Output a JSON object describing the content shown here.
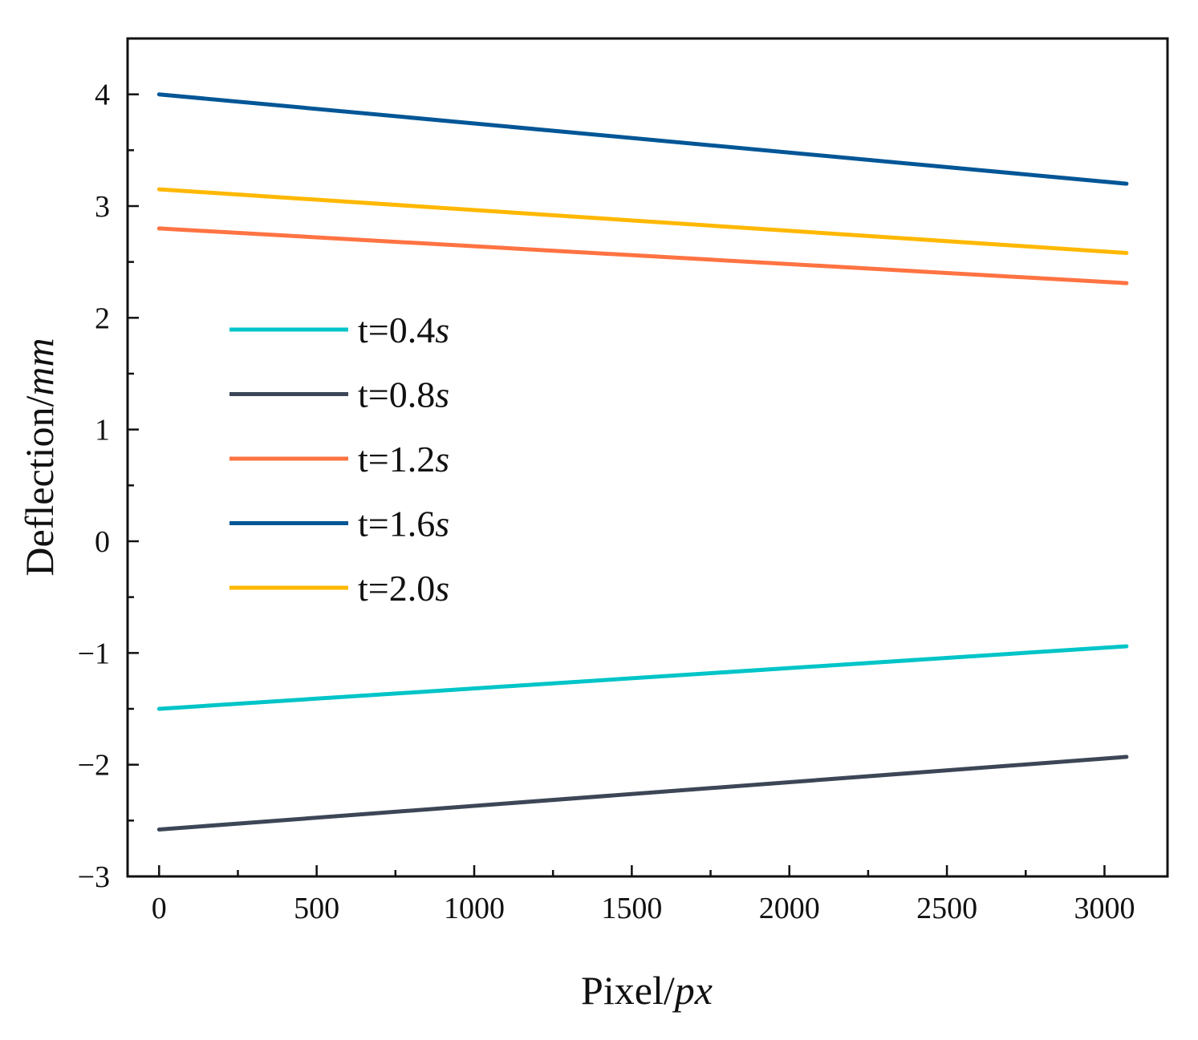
{
  "chart_data": {
    "type": "line",
    "xlabel": "Pixel/",
    "xlabel_unit": "px",
    "ylabel": "Deflection/",
    "ylabel_unit": "mm",
    "xlim": [
      -100,
      3200
    ],
    "ylim": [
      -3,
      4.5
    ],
    "x_ticks": [
      0,
      500,
      1000,
      1500,
      2000,
      2500,
      3000
    ],
    "x_tick_labels": [
      "0",
      "500",
      "1000",
      "1500",
      "2000",
      "2500",
      "3000"
    ],
    "y_ticks": [
      -3,
      -2,
      -1,
      0,
      1,
      2,
      3,
      4
    ],
    "y_tick_labels": [
      "−3",
      "−2",
      "−1",
      "0",
      "1",
      "2",
      "3",
      "4"
    ],
    "x_minor_step": 250,
    "y_minor_step": 0.5,
    "grid": false,
    "legend_position": "center-left",
    "series": [
      {
        "name": "t=0.4",
        "unit": "s",
        "color": "#00C5C8",
        "x": [
          0,
          3070
        ],
        "y": [
          -1.5,
          -0.94
        ]
      },
      {
        "name": "t=0.8",
        "unit": "s",
        "color": "#3C4656",
        "x": [
          0,
          3070
        ],
        "y": [
          -2.58,
          -1.93
        ]
      },
      {
        "name": "t=1.2",
        "unit": "s",
        "color": "#FF7342",
        "x": [
          0,
          3070
        ],
        "y": [
          2.8,
          2.31
        ]
      },
      {
        "name": "t=1.6",
        "unit": "s",
        "color": "#005696",
        "x": [
          0,
          3070
        ],
        "y": [
          4.0,
          3.2
        ]
      },
      {
        "name": "t=2.0",
        "unit": "s",
        "color": "#FFB800",
        "x": [
          0,
          3070
        ],
        "y": [
          3.15,
          2.58
        ]
      }
    ]
  }
}
